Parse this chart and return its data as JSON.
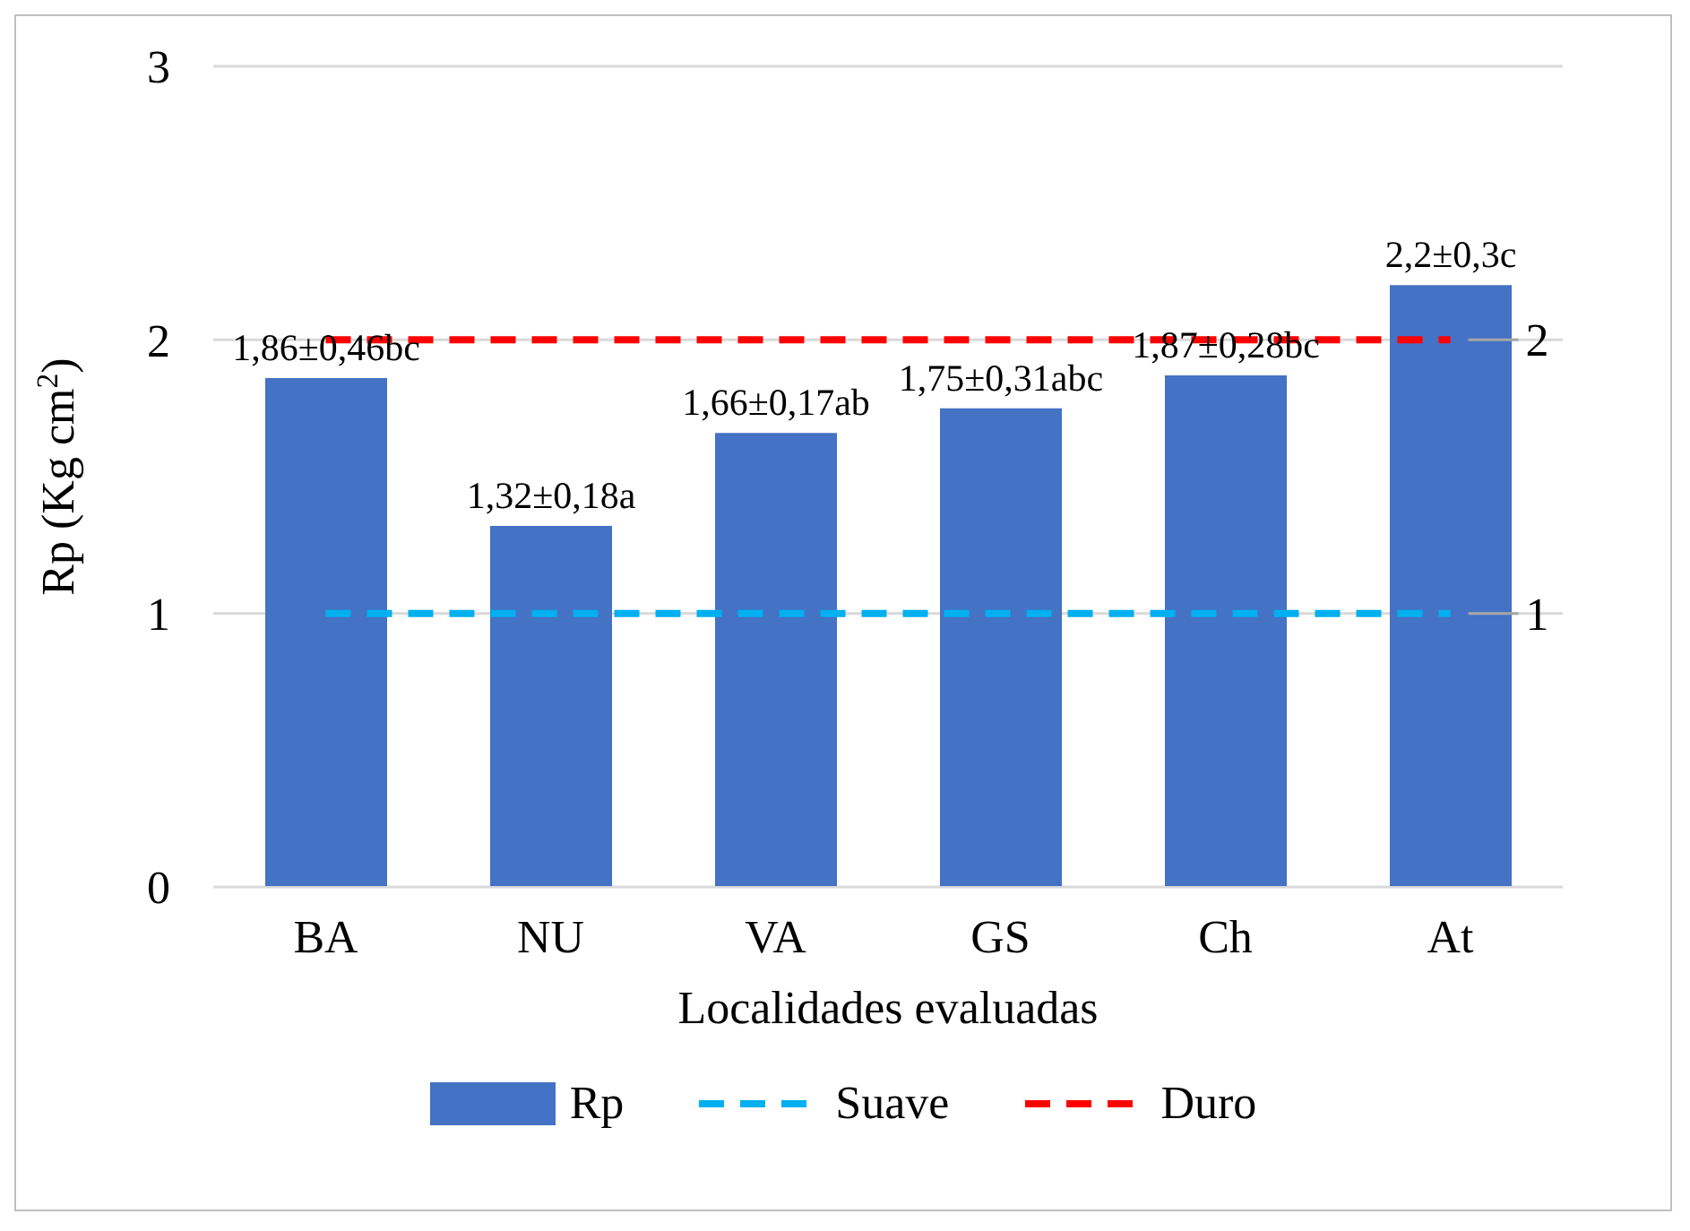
{
  "chart_data": {
    "type": "bar",
    "xlabel": "Localidades evaluadas",
    "ylabel": "Rp (Kg cm$^{2}$)",
    "categories": [
      "BA",
      "NU",
      "VA",
      "GS",
      "Ch",
      "At"
    ],
    "series": [
      {
        "name": "Rp",
        "color": "#4472c4",
        "values": [
          1.86,
          1.32,
          1.66,
          1.75,
          1.87,
          2.2
        ],
        "value_labels": [
          "1,86±0,46bc",
          "1,32±0,18a",
          "1,66±0,17ab",
          "1,75±0,31abc",
          "1,87±0,28bc",
          "2,2±0,3c"
        ]
      },
      {
        "name": "Suave",
        "type": "line",
        "color": "#00b0f0",
        "line_style": "dashed",
        "values": [
          1,
          1,
          1,
          1,
          1,
          1
        ],
        "value_labels": [
          null,
          null,
          null,
          null,
          null,
          "1"
        ]
      },
      {
        "name": "Duro",
        "type": "line",
        "color": "#ff0000",
        "line_style": "dashed",
        "values": [
          2,
          2,
          2,
          2,
          2,
          2
        ],
        "value_labels": [
          null,
          null,
          null,
          null,
          null,
          "2"
        ]
      }
    ],
    "ylim": [
      0,
      3
    ],
    "yticks": [
      0,
      1,
      2,
      3
    ],
    "grid": "y",
    "legend": "bottom",
    "marker": "none"
  }
}
